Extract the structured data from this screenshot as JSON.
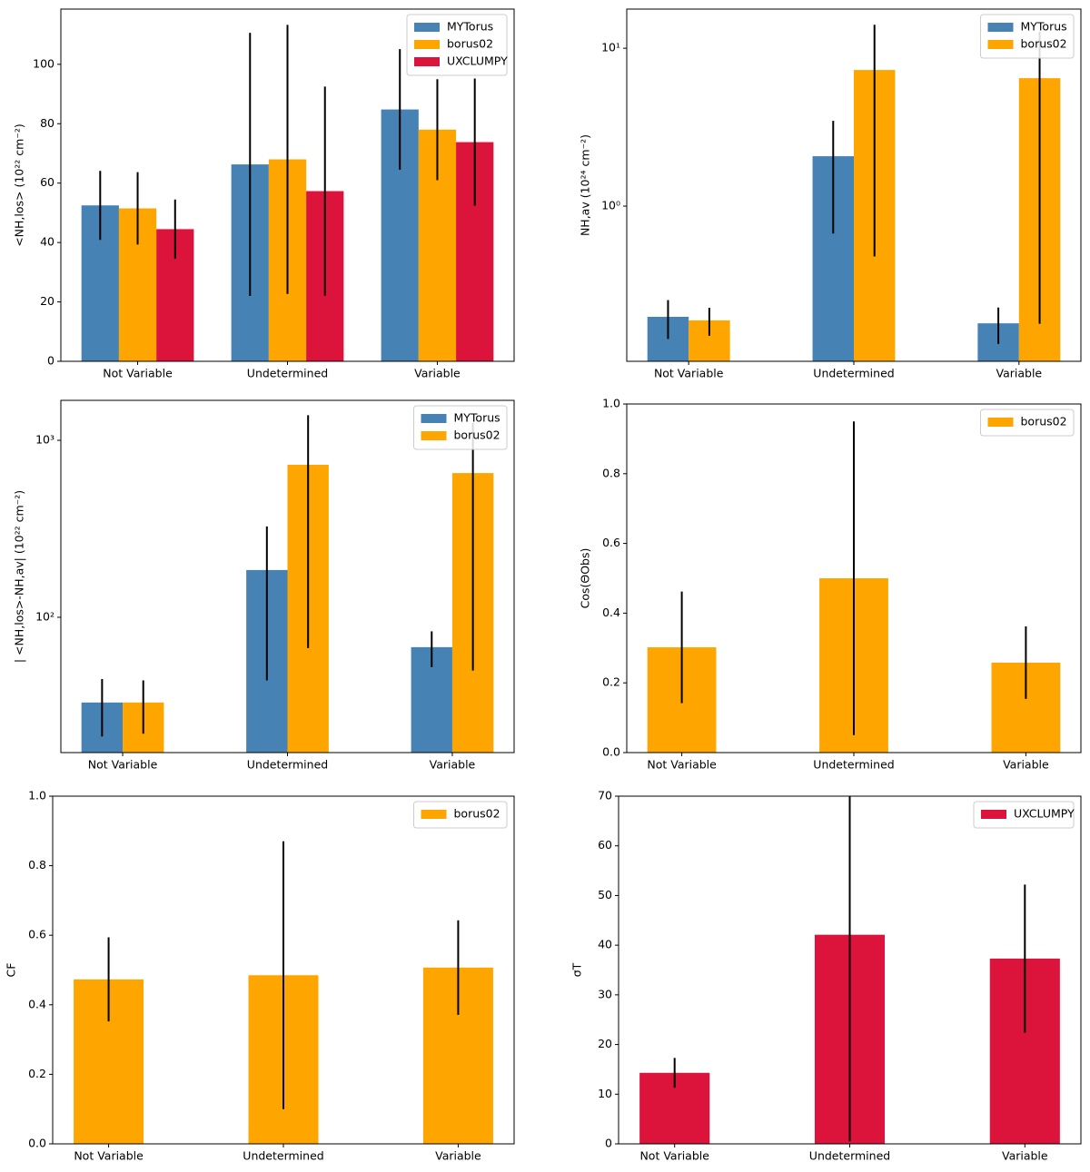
{
  "chart_data": [
    {
      "type": "bar",
      "ylabel": "<NH,los> (10²² cm⁻²)",
      "categories": [
        "Not Variable",
        "Undetermined",
        "Variable"
      ],
      "series": [
        {
          "name": "MYTorus",
          "color": "#4682b4",
          "values": [
            52.5,
            66.3,
            84.8
          ],
          "errors": [
            11.6,
            44.3,
            20.3
          ]
        },
        {
          "name": "borus02",
          "color": "#ffa500",
          "values": [
            51.5,
            68,
            78
          ],
          "errors": [
            12.2,
            45.3,
            17
          ]
        },
        {
          "name": "UXCLUMPY",
          "color": "#dc143c",
          "values": [
            44.5,
            57.3,
            73.8
          ],
          "errors": [
            10,
            35.2,
            21.4
          ]
        }
      ],
      "ylim": [
        0,
        118.6
      ],
      "yticks": [
        0,
        20,
        40,
        60,
        80,
        100
      ],
      "log_scale": false,
      "legend": "upper right"
    },
    {
      "type": "bar",
      "ylabel": "NH,av (10²⁴ cm⁻²)",
      "categories": [
        "Not Variable",
        "Undetermined",
        "Variable"
      ],
      "series": [
        {
          "name": "MYTorus",
          "color": "#4682b4",
          "values": [
            0.199,
            2.07,
            0.181
          ],
          "errors": [
            0.055,
            1.4,
            0.047
          ]
        },
        {
          "name": "borus02",
          "color": "#ffa500",
          "values": [
            0.189,
            7.28,
            6.46
          ],
          "errors": [
            0.038,
            6.8,
            6.28
          ]
        }
      ],
      "ylim": [
        0.104,
        17.7
      ],
      "yticks": [
        {
          "value": 1,
          "label": "10⁰"
        },
        {
          "value": 10,
          "label": "10¹"
        }
      ],
      "log_scale": true,
      "legend": "upper right"
    },
    {
      "type": "bar",
      "ylabel": "| <NH,los>-NH,av| (10²² cm⁻²)",
      "categories": [
        "Not Variable",
        "Undetermined",
        "Variable"
      ],
      "series": [
        {
          "name": "MYTorus",
          "color": "#4682b4",
          "values": [
            33,
            185,
            67.8
          ],
          "errors": [
            11.8,
            141,
            15.5
          ]
        },
        {
          "name": "borus02",
          "color": "#ffa500",
          "values": [
            33,
            727,
            653
          ],
          "errors": [
            11,
            660,
            603
          ]
        }
      ],
      "ylim": [
        17.2,
        1682
      ],
      "yticks": [
        {
          "value": 100,
          "label": "10²"
        },
        {
          "value": 1000,
          "label": "10³"
        }
      ],
      "log_scale": true,
      "legend": "upper right"
    },
    {
      "type": "bar",
      "ylabel": "Cos(ΘObs)",
      "categories": [
        "Not Variable",
        "Undetermined",
        "Variable"
      ],
      "series": [
        {
          "name": "borus02",
          "color": "#ffa500",
          "values": [
            0.302,
            0.5,
            0.258
          ],
          "errors": [
            0.16,
            0.45,
            0.104
          ]
        }
      ],
      "ylim": [
        0,
        1
      ],
      "yticks": [
        {
          "value": 0,
          "label": "0.0"
        },
        0.2,
        0.4,
        0.6,
        0.8,
        {
          "value": 1,
          "label": "1.0"
        }
      ],
      "log_scale": false,
      "legend": "upper right"
    },
    {
      "type": "bar",
      "ylabel": "CF",
      "categories": [
        "Not Variable",
        "Undetermined",
        "Variable"
      ],
      "series": [
        {
          "name": "borus02",
          "color": "#ffa500",
          "values": [
            0.473,
            0.485,
            0.507
          ],
          "errors": [
            0.121,
            0.385,
            0.136
          ]
        }
      ],
      "ylim": [
        0,
        1
      ],
      "yticks": [
        {
          "value": 0,
          "label": "0.0"
        },
        0.2,
        0.4,
        0.6,
        0.8,
        {
          "value": 1,
          "label": "1.0"
        }
      ],
      "log_scale": false,
      "legend": "upper right"
    },
    {
      "type": "bar",
      "ylabel": "σT",
      "categories": [
        "Not Variable",
        "Undetermined",
        "Variable"
      ],
      "series": [
        {
          "name": "UXCLUMPY",
          "color": "#dc143c",
          "values": [
            14.3,
            42.1,
            37.3
          ],
          "errors": [
            3,
            41.6,
            14.9
          ]
        }
      ],
      "ylim": [
        0,
        70
      ],
      "yticks": [
        0,
        10,
        20,
        30,
        40,
        50,
        60,
        70
      ],
      "log_scale": false,
      "legend": "upper right"
    }
  ]
}
